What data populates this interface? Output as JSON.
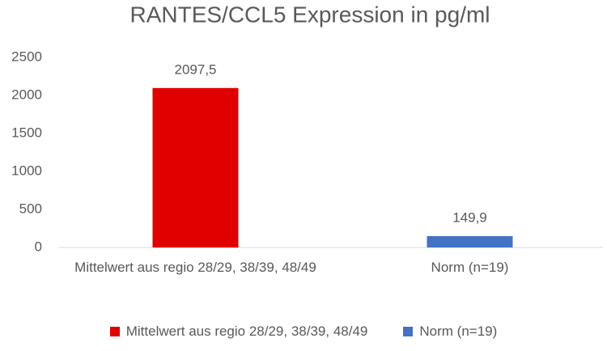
{
  "chart_data": {
    "type": "bar",
    "title": "RANTES/CCL5 Expression in pg/ml",
    "categories": [
      "Mittelwert aus regio 28/29, 38/39, 48/49",
      "Norm (n=19)"
    ],
    "values": [
      2097.5,
      149.9
    ],
    "value_labels": [
      "2097,5",
      "149,9"
    ],
    "colors": [
      "#e00000",
      "#4472c4"
    ],
    "ylim": [
      0,
      2500
    ],
    "yticks": [
      0,
      500,
      1000,
      1500,
      2000,
      2500
    ],
    "grid": false,
    "legend": "bottom"
  }
}
